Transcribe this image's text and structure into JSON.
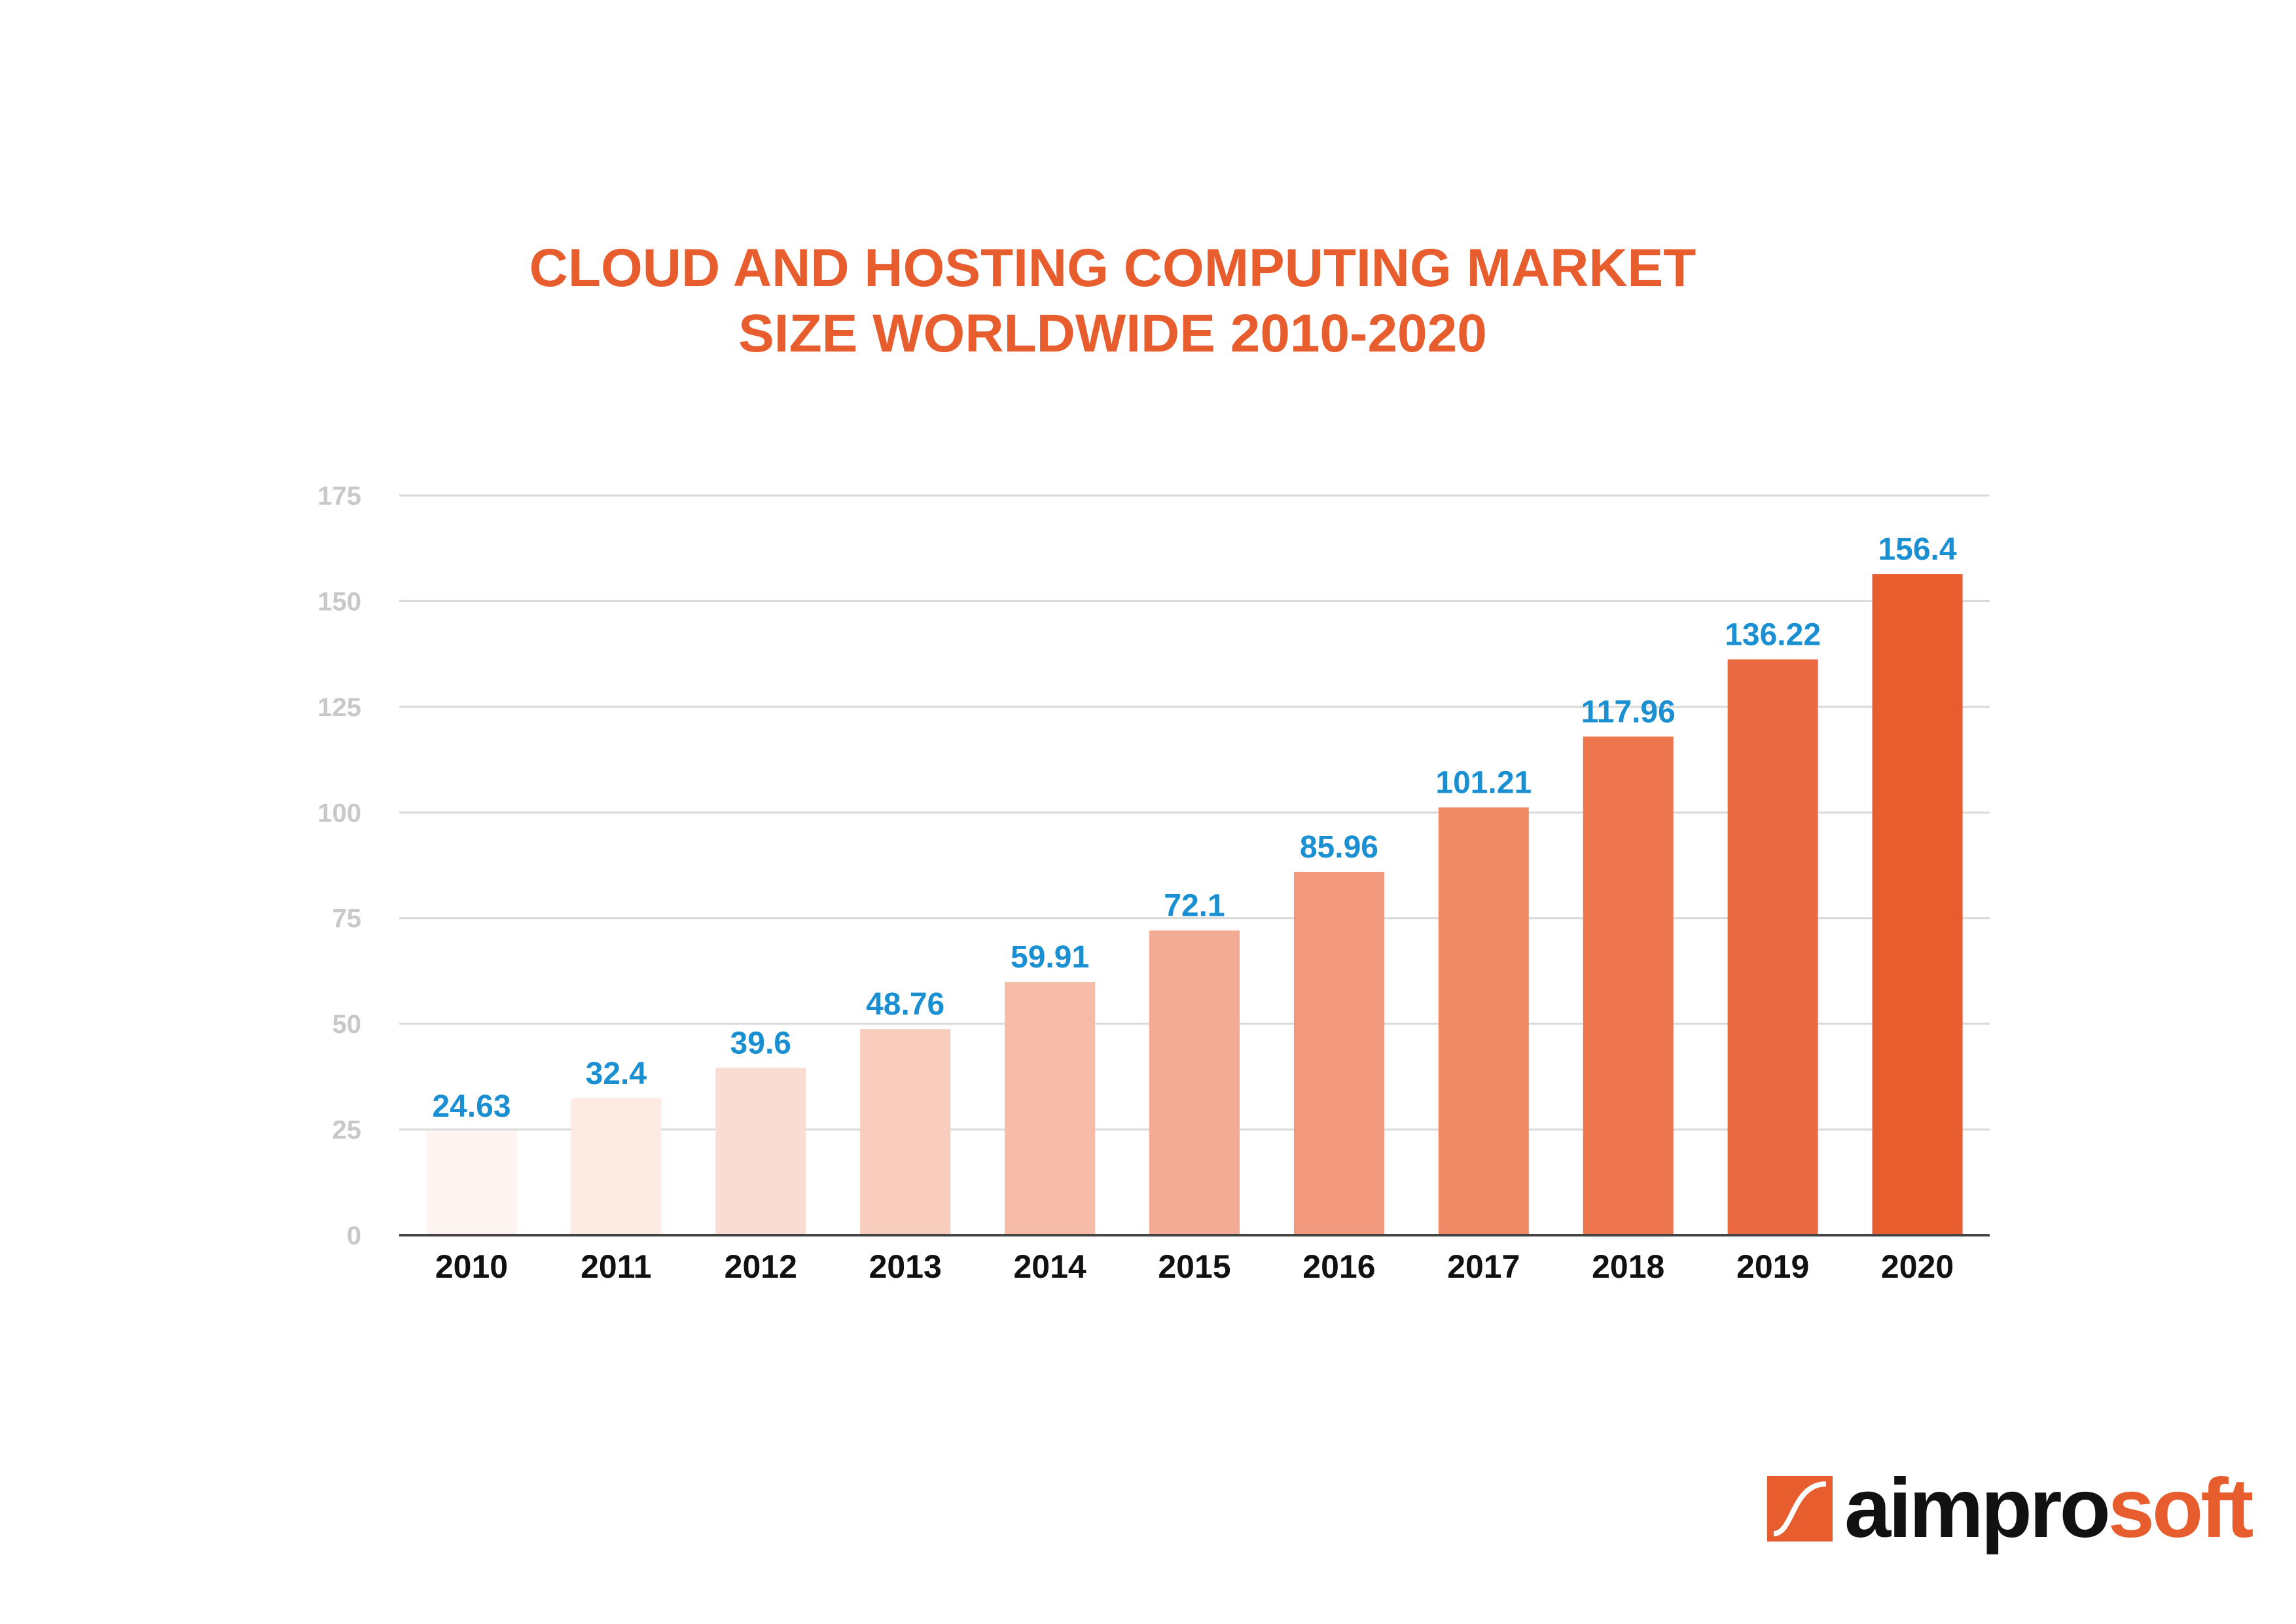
{
  "chart_data": {
    "type": "bar",
    "title_lines": [
      "CLOUD AND HOSTING COMPUTING MARKET",
      "SIZE WORLDWIDE 2010-2020"
    ],
    "categories": [
      "2010",
      "2011",
      "2012",
      "2013",
      "2014",
      "2015",
      "2016",
      "2017",
      "2018",
      "2019",
      "2020"
    ],
    "values": [
      24.63,
      32.4,
      39.6,
      48.76,
      59.91,
      72.1,
      85.96,
      101.21,
      117.96,
      136.22,
      156.4
    ],
    "value_labels": [
      "24.63",
      "32.4",
      "39.6",
      "48.76",
      "59.91",
      "72.1",
      "85.96",
      "101.21",
      "117.96",
      "136.22",
      "156.4"
    ],
    "bar_colors": [
      "#fef4f1",
      "#fdeae3",
      "#fbdcd2",
      "#f9cdbd",
      "#f6bca8",
      "#f4ab93",
      "#f2997d",
      "#ef8865",
      "#ed764f",
      "#eb6a42",
      "#e85d2e"
    ],
    "yticks": [
      0,
      25,
      50,
      75,
      100,
      125,
      150,
      175
    ],
    "ylim": [
      0,
      175
    ],
    "xlabel": "",
    "ylabel": "",
    "grid": true,
    "colors": {
      "title": "#e85d2e",
      "value_label": "#1a8fd1",
      "tick_label": "#c8c8c8",
      "category_label": "#111111",
      "grid": "#d9d9d9",
      "axis": "#444444"
    }
  },
  "logo": {
    "text_dark": "aimpro",
    "text_accent": "soft",
    "mark_color": "#e85d2e"
  }
}
